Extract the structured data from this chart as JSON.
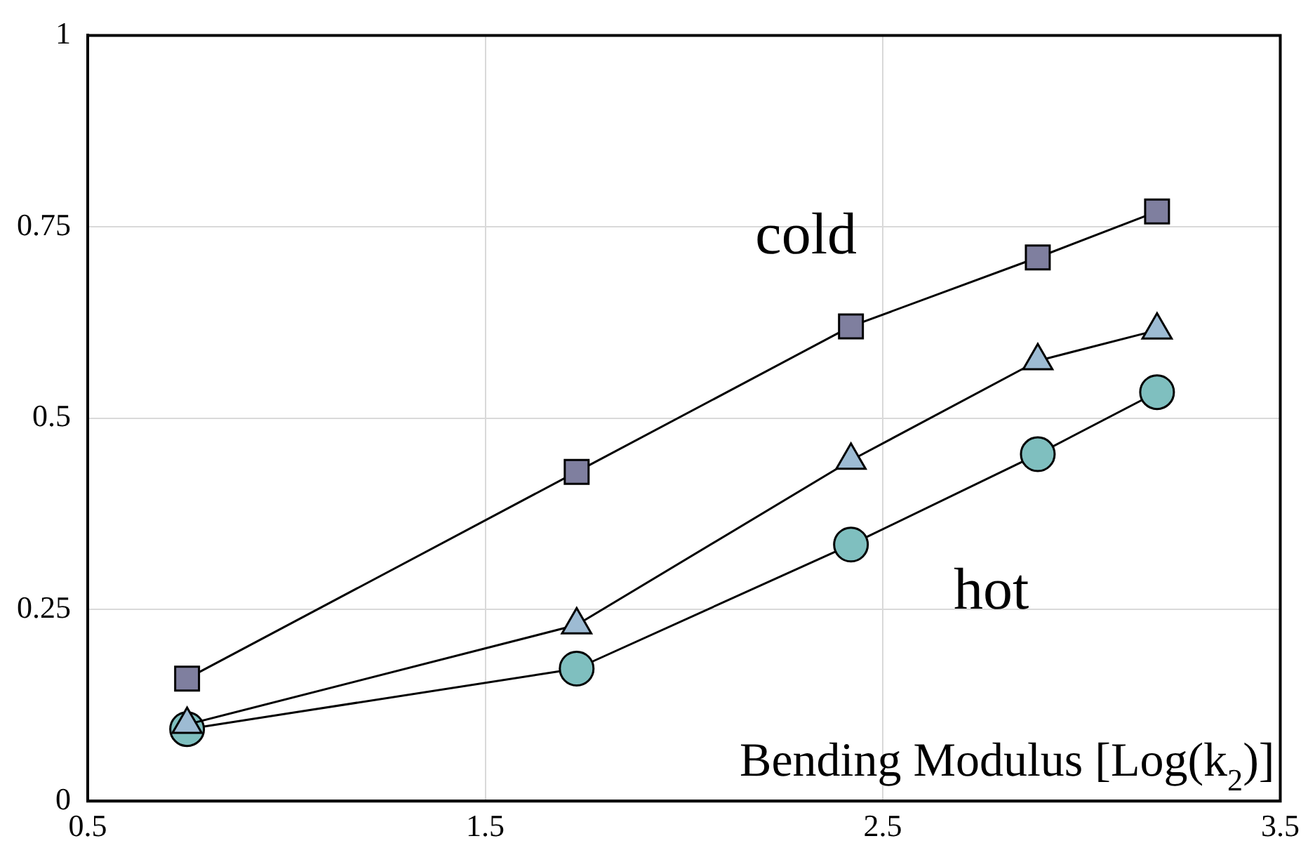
{
  "chart_data": {
    "type": "line",
    "xlabel": "Bending Modulus [Log(k$_{2}$)]",
    "x": [
      0.75,
      1.73,
      2.42,
      2.89,
      3.19
    ],
    "series": [
      {
        "name": "cold",
        "color": "#7f7f9f",
        "marker": "square",
        "values": [
          0.16,
          0.43,
          0.62,
          0.71,
          0.77
        ]
      },
      {
        "color": "#9dbbd3",
        "marker": "triangle",
        "values": [
          0.1,
          0.23,
          0.445,
          0.575,
          0.615
        ]
      },
      {
        "name": "hot",
        "color": "#7fbfbf",
        "marker": "circle",
        "values": [
          0.094,
          0.173,
          0.335,
          0.453,
          0.534
        ]
      }
    ],
    "xlim": [
      0.5,
      3.5
    ],
    "xticks": [
      0.5,
      1.5,
      2.5,
      3.5
    ],
    "ylim": [
      0,
      1
    ],
    "yticks": [
      0,
      0.25,
      0.5,
      0.75,
      1
    ],
    "grid": true,
    "legend": false
  }
}
